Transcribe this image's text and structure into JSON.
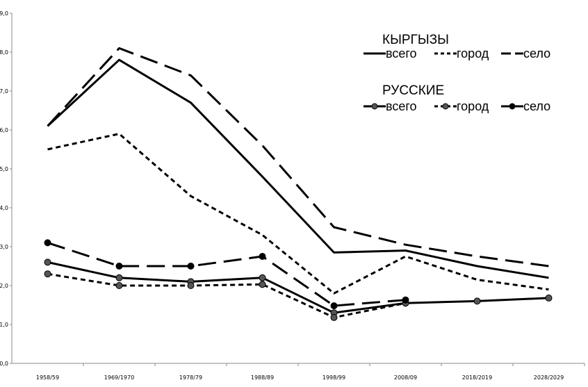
{
  "chart_data": {
    "type": "line",
    "title": "",
    "xlabel": "",
    "ylabel": "",
    "ylim": [
      0,
      9
    ],
    "y_ticks": [
      "0,0",
      "1,0",
      "2,0",
      "3,0",
      "4,0",
      "5,0",
      "6,0",
      "7,0",
      "8,0",
      "9,0"
    ],
    "categories": [
      "1958/59",
      "1969/1970",
      "1978/79",
      "1988/89",
      "1998/99",
      "2008/09",
      "2018/2019",
      "2028/2029"
    ],
    "grid": false,
    "legend_placement": "top-right",
    "groups": [
      {
        "title": "КЫРГЫЗЫ",
        "labels": [
          "всего",
          "город",
          "село"
        ]
      },
      {
        "title": "РУССКИЕ",
        "labels": [
          "всего",
          "город",
          "село"
        ]
      }
    ],
    "series": [
      {
        "group": "КЫРГЫЗЫ",
        "name": "всего",
        "style": "solid",
        "markers": false,
        "values": [
          6.1,
          7.8,
          6.7,
          4.8,
          2.85,
          2.9,
          2.5,
          2.2
        ]
      },
      {
        "group": "КЫРГЫЗЫ",
        "name": "город",
        "style": "dotted",
        "markers": false,
        "values": [
          5.5,
          5.9,
          4.3,
          3.3,
          1.8,
          2.75,
          2.15,
          1.9
        ]
      },
      {
        "group": "КЫРГЫЗЫ",
        "name": "село",
        "style": "dashed",
        "markers": false,
        "values": [
          6.1,
          8.1,
          7.4,
          5.6,
          3.5,
          3.05,
          2.75,
          2.5
        ]
      },
      {
        "group": "РУССКИЕ",
        "name": "всего",
        "style": "solid",
        "markers": true,
        "values": [
          2.6,
          2.2,
          2.1,
          2.2,
          1.3,
          1.55,
          1.6,
          1.68
        ]
      },
      {
        "group": "РУССКИЕ",
        "name": "город",
        "style": "dotted",
        "markers": true,
        "values": [
          2.3,
          2.0,
          2.0,
          2.03,
          1.18,
          1.55,
          null,
          null
        ]
      },
      {
        "group": "РУССКИЕ",
        "name": "село",
        "style": "dashed",
        "markers": true,
        "values": [
          3.1,
          2.5,
          2.5,
          2.75,
          1.48,
          1.63,
          null,
          null
        ]
      }
    ],
    "colors": {
      "line": "#000000",
      "marker": "#555555",
      "axis": "#888888"
    }
  }
}
